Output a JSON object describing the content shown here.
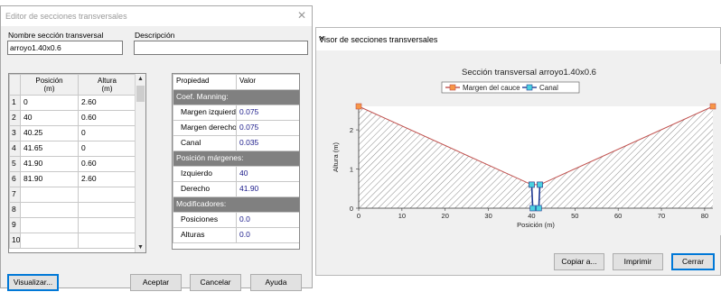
{
  "editor": {
    "title": "Editor de secciones transversales",
    "name_label": "Nombre sección transversal",
    "name_value": "arroyo1.40x0.6",
    "desc_label": "Descripción",
    "desc_value": "",
    "coords": {
      "headers": [
        "Posición\n(m)",
        "Altura\n(m)"
      ],
      "rows": [
        {
          "n": "1",
          "pos": "0",
          "alt": "2.60"
        },
        {
          "n": "2",
          "pos": "40",
          "alt": "0.60"
        },
        {
          "n": "3",
          "pos": "40.25",
          "alt": "0"
        },
        {
          "n": "4",
          "pos": "41.65",
          "alt": "0"
        },
        {
          "n": "5",
          "pos": "41.90",
          "alt": "0.60"
        },
        {
          "n": "6",
          "pos": "81.90",
          "alt": "2.60"
        },
        {
          "n": "7",
          "pos": "",
          "alt": ""
        },
        {
          "n": "8",
          "pos": "",
          "alt": ""
        },
        {
          "n": "9",
          "pos": "",
          "alt": ""
        },
        {
          "n": "10",
          "pos": "",
          "alt": ""
        }
      ]
    },
    "props": {
      "headers": [
        "Propiedad",
        "Valor"
      ],
      "rows": [
        {
          "label": "Coef. Manning:",
          "value": "",
          "section": true
        },
        {
          "label": "Margen izquierdo",
          "value": "0.075",
          "section": false
        },
        {
          "label": "Margen derecho",
          "value": "0.075",
          "section": false
        },
        {
          "label": "Canal",
          "value": "0.035",
          "section": false
        },
        {
          "label": "Posición márgenes:",
          "value": "",
          "section": true
        },
        {
          "label": "Izquierdo",
          "value": "40",
          "section": false
        },
        {
          "label": "Derecho",
          "value": "41.90",
          "section": false
        },
        {
          "label": "Modificadores:",
          "value": "",
          "section": true
        },
        {
          "label": "Posiciones",
          "value": "0.0",
          "section": false
        },
        {
          "label": "Alturas",
          "value": "0.0",
          "section": false
        }
      ]
    },
    "buttons": {
      "visualizar": "Visualizar...",
      "aceptar": "Aceptar",
      "cancelar": "Cancelar",
      "ayuda": "Ayuda"
    }
  },
  "viewer": {
    "title": "Visor de secciones transversales",
    "close_glyph": "×",
    "buttons": {
      "copiar": "Copiar a...",
      "imprimir": "Imprimir",
      "cerrar": "Cerrar"
    }
  },
  "chart_data": {
    "type": "line",
    "title": "Sección transversal arroyo1.40x0.6",
    "xlabel": "Posición (m)",
    "ylabel": "Altura (m)",
    "xlim": [
      0,
      81.9
    ],
    "ylim": [
      0,
      2.6
    ],
    "xticks": [
      0,
      10,
      20,
      30,
      40,
      50,
      60,
      70,
      80
    ],
    "yticks": [
      0,
      1,
      2
    ],
    "legend_position": "top-center",
    "series": [
      {
        "name": "Margen del cauce",
        "color": "#c0504d",
        "marker_fill": "#f79646",
        "points": [
          [
            0,
            2.6
          ],
          [
            40,
            0.6
          ],
          [
            41.9,
            0.6
          ],
          [
            81.9,
            2.6
          ]
        ]
      },
      {
        "name": "Canal",
        "color": "#1f3a93",
        "marker_fill": "#4bd1e0",
        "points": [
          [
            40,
            0.6
          ],
          [
            40.25,
            0
          ],
          [
            41.65,
            0
          ],
          [
            41.9,
            0.6
          ]
        ]
      }
    ],
    "fill": "hatched"
  }
}
